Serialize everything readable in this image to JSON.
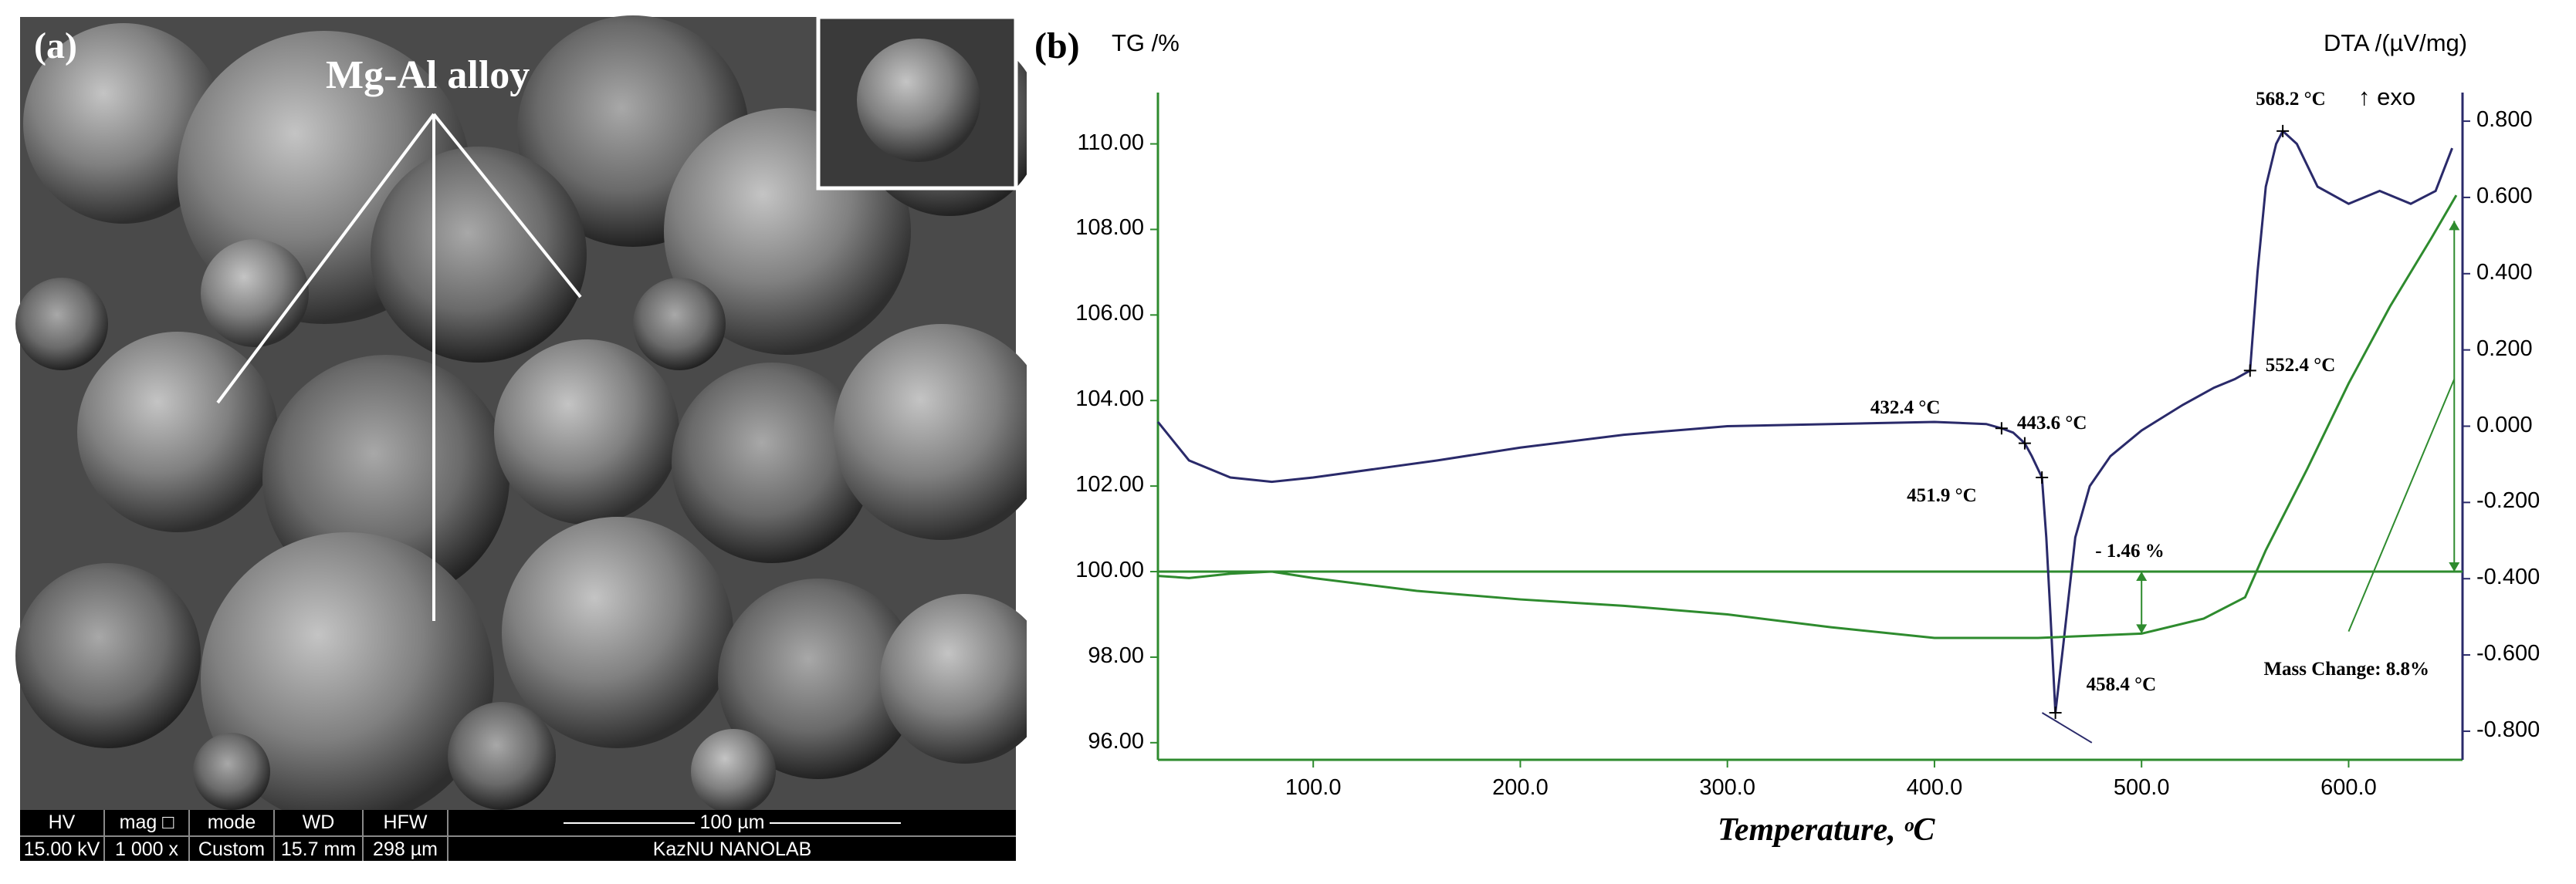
{
  "panel_a": {
    "letter": "(a)",
    "label": "Mg-Al alloy",
    "footer": {
      "hv_label": "HV",
      "hv_value": "15.00 kV",
      "mag_label": "mag □",
      "mag_value": "1 000 x",
      "mode_label": "mode",
      "mode_value": "Custom",
      "wd_label": "WD",
      "wd_value": "15.7 mm",
      "hfw_label": "HFW",
      "hfw_value": "298 µm",
      "scale_label": "100 µm",
      "lab_label": "KazNU NANOLAB"
    }
  },
  "panel_b": {
    "letter": "(b)",
    "y_left_title": "TG /%",
    "y_right_title": "DTA /(µV/mg)",
    "exo_label": "↑ exo",
    "x_title": "Temperature, ᵒC"
  },
  "chart_data": {
    "type": "line",
    "xlabel": "Temperature, ᵒC",
    "ylabel": "TG /%",
    "y2label": "DTA /(µV/mg)",
    "xlim": [
      25,
      655
    ],
    "ylim": [
      95.6,
      111.2
    ],
    "y2lim": [
      -0.875,
      0.875
    ],
    "x_ticks": [
      "100.0",
      "200.0",
      "300.0",
      "400.0",
      "500.0",
      "600.0"
    ],
    "x_tick_values": [
      100,
      200,
      300,
      400,
      500,
      600
    ],
    "y_ticks": [
      "96.00",
      "98.00",
      "100.00",
      "102.00",
      "104.00",
      "106.00",
      "108.00",
      "110.00"
    ],
    "y_tick_values": [
      96,
      98,
      100,
      102,
      104,
      106,
      108,
      110
    ],
    "y2_ticks": [
      "-0.800",
      "-0.600",
      "-0.400",
      "-0.200",
      "0.000",
      "0.200",
      "0.400",
      "0.600",
      "0.800"
    ],
    "y2_tick_values": [
      -0.8,
      -0.6,
      -0.4,
      -0.2,
      0.0,
      0.2,
      0.4,
      0.6,
      0.8
    ],
    "reference_line_y": 100.0,
    "grid": false,
    "series": [
      {
        "color": "#2a2a6a",
        "axis": "left",
        "x": [
          25,
          40,
          60,
          80,
          100,
          130,
          160,
          200,
          250,
          300,
          350,
          400,
          425,
          432.4,
          438,
          443.6,
          447,
          451.9,
          454,
          456,
          458.4,
          462,
          468,
          475,
          485,
          500,
          520,
          535,
          545,
          552.4,
          556,
          560,
          565,
          568.2,
          575,
          585,
          600,
          615,
          630,
          642,
          650
        ],
        "y": [
          103.5,
          102.6,
          102.2,
          102.1,
          102.2,
          102.4,
          102.6,
          102.9,
          103.2,
          103.4,
          103.45,
          103.5,
          103.45,
          103.35,
          103.25,
          103.0,
          102.7,
          102.2,
          100.8,
          99.0,
          96.7,
          98.2,
          100.8,
          102.0,
          102.7,
          103.3,
          103.9,
          104.3,
          104.5,
          104.7,
          107.0,
          109.0,
          110.0,
          110.3,
          110.0,
          109.0,
          108.6,
          108.9,
          108.6,
          108.9,
          109.9
        ]
      },
      {
        "color": "#2e8b2e",
        "axis": "left",
        "x": [
          25,
          40,
          60,
          80,
          100,
          150,
          200,
          250,
          300,
          350,
          400,
          450,
          500,
          530,
          550,
          560,
          580,
          600,
          620,
          640,
          652
        ],
        "y": [
          99.9,
          99.85,
          99.95,
          100.0,
          99.85,
          99.55,
          99.35,
          99.2,
          99.0,
          98.7,
          98.45,
          98.45,
          98.55,
          98.9,
          99.4,
          100.5,
          102.4,
          104.4,
          106.2,
          107.8,
          108.8
        ]
      }
    ],
    "annotations": [
      {
        "text": "568.2 °C",
        "x": 568.2,
        "y": 110.3
      },
      {
        "text": "432.4 °C",
        "x": 432.4,
        "y": 103.35
      },
      {
        "text": "443.6 °C",
        "x": 443.6,
        "y": 103.0
      },
      {
        "text": "451.9 °C",
        "x": 451.9,
        "y": 102.2
      },
      {
        "text": "552.4 °C",
        "x": 552.4,
        "y": 104.7
      },
      {
        "text": "458.4 °C",
        "x": 458.4,
        "y": 96.7
      },
      {
        "text": "- 1.46 %",
        "x": 500,
        "y": 99.0
      },
      {
        "text": "Mass Change: 8.8%",
        "x": 600,
        "y": 98.6
      }
    ]
  }
}
